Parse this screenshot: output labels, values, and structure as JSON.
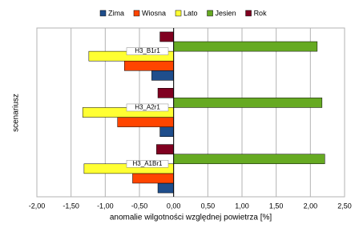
{
  "chart_data": {
    "type": "hbar",
    "x_label": "anomalie wilgotności względnej powietrza [%]",
    "y_label": "scenariusz",
    "categories": [
      "H3_B1r1",
      "H3_A2r1",
      "H3_A1Br1"
    ],
    "series": [
      {
        "name": "Zima",
        "color": "#1f4e8c",
        "values": [
          -0.32,
          -0.2,
          -0.23
        ]
      },
      {
        "name": "Wiosna",
        "color": "#ff4500",
        "values": [
          -0.72,
          -0.82,
          -0.6
        ]
      },
      {
        "name": "Lato",
        "color": "#ffff33",
        "values": [
          -1.24,
          -1.33,
          -1.31
        ]
      },
      {
        "name": "Jesien",
        "color": "#66aa22",
        "values": [
          2.1,
          2.17,
          2.21
        ]
      },
      {
        "name": "Rok",
        "color": "#800020",
        "values": [
          -0.2,
          -0.23,
          -0.25
        ]
      }
    ],
    "xlim": [
      -2,
      2.5
    ],
    "xticks": [
      {
        "value": -2,
        "label": "-2,00"
      },
      {
        "value": -1.5,
        "label": "-1,50"
      },
      {
        "value": -1,
        "label": "-1,00"
      },
      {
        "value": -0.5,
        "label": "-0,50"
      },
      {
        "value": 0,
        "label": "0,00"
      },
      {
        "value": 0.5,
        "label": "0,50"
      },
      {
        "value": 1,
        "label": "1,00"
      },
      {
        "value": 1.5,
        "label": "1,50"
      },
      {
        "value": 2,
        "label": "2,00"
      },
      {
        "value": 2.5,
        "label": "2,50"
      }
    ],
    "grid": true,
    "legend": "top"
  }
}
